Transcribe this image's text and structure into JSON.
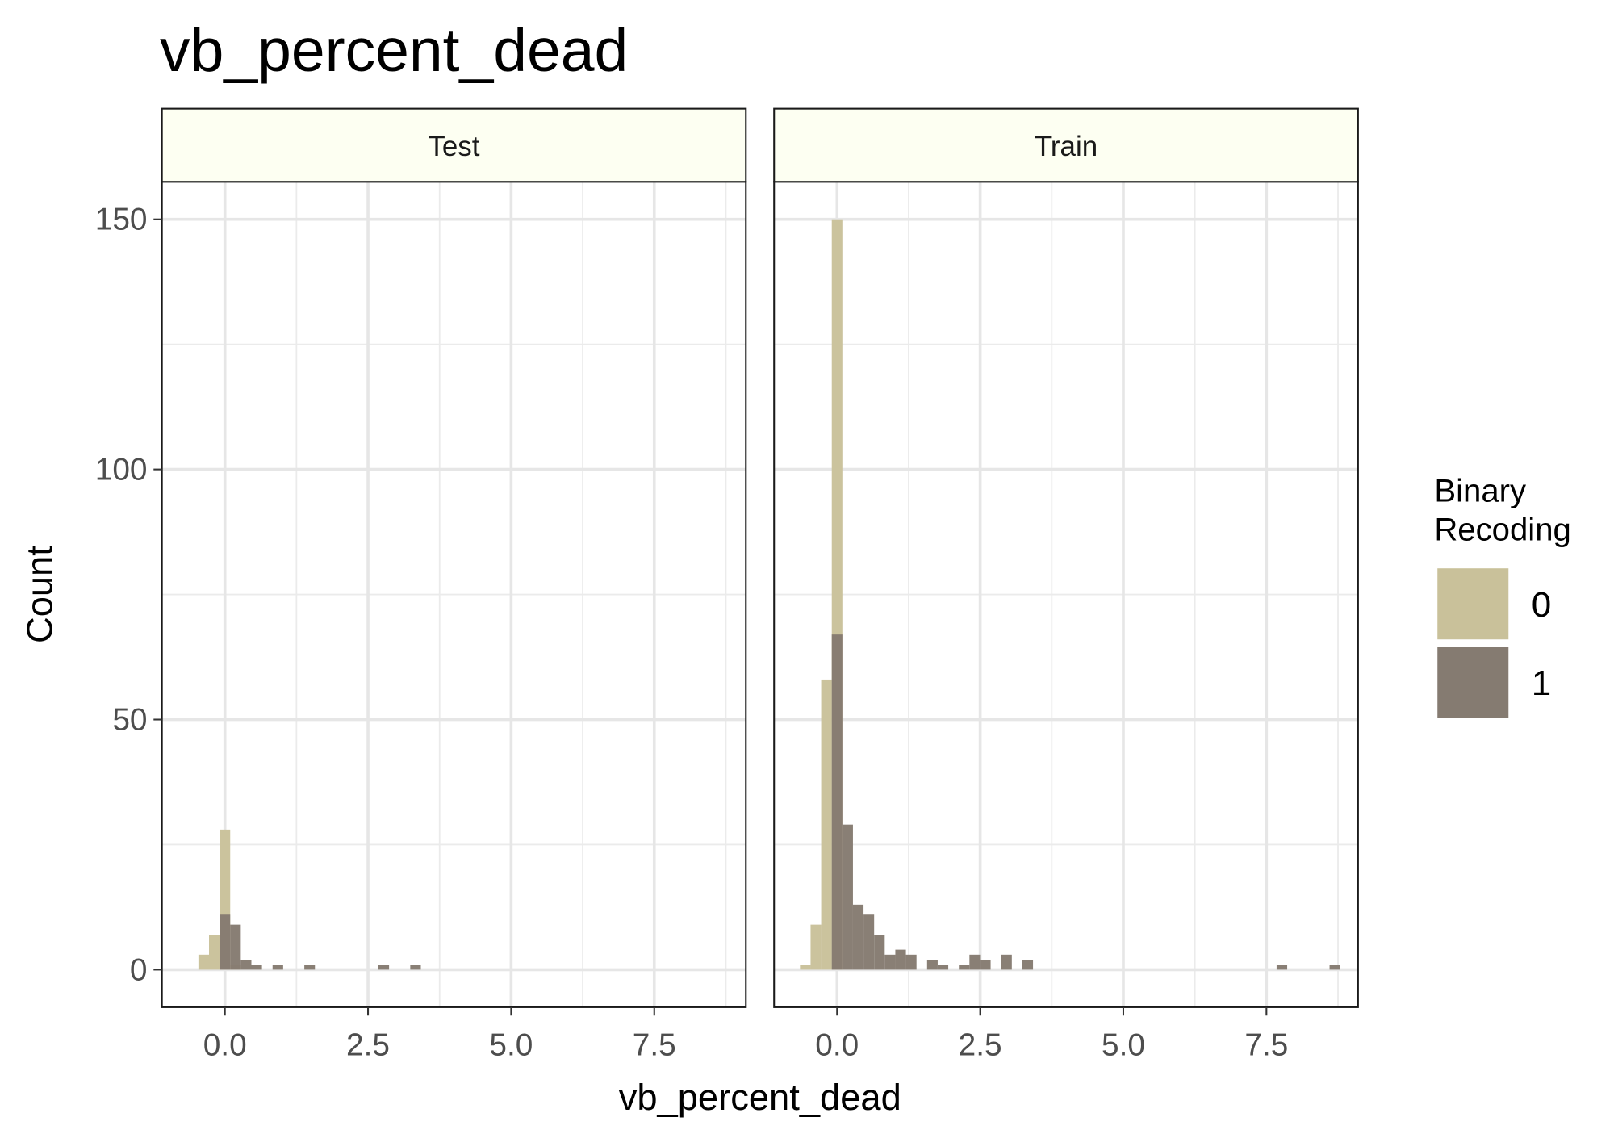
{
  "chart_data": {
    "type": "bar",
    "title": "vb_percent_dead",
    "xlabel": "vb_percent_dead",
    "ylabel": "Count",
    "facets": [
      "Test",
      "Train"
    ],
    "xlim": [
      -1.1,
      9.1
    ],
    "ylim": [
      -7.5,
      157.5
    ],
    "x_ticks": [
      0.0,
      2.5,
      5.0,
      7.5
    ],
    "x_tick_labels": [
      "0.0",
      "2.5",
      "5.0",
      "7.5"
    ],
    "y_ticks": [
      0,
      50,
      100,
      150
    ],
    "y_tick_labels": [
      "0",
      "50",
      "100",
      "150"
    ],
    "grid": true,
    "legend": {
      "title": [
        "Binary",
        "Recoding"
      ],
      "position": "right",
      "items": [
        {
          "label": "0",
          "color": "#c9c19a"
        },
        {
          "label": "1",
          "color": "#857b71"
        }
      ]
    },
    "strip_fill": "#fdfff2",
    "bin_width": 0.185,
    "series": [
      {
        "facet": "Test",
        "name": "0",
        "bins": [
          {
            "x": -0.37,
            "count": 3
          },
          {
            "x": -0.185,
            "count": 7
          },
          {
            "x": 0.0,
            "count": 28
          },
          {
            "x": 0.185,
            "count": 1
          }
        ]
      },
      {
        "facet": "Test",
        "name": "1",
        "bins": [
          {
            "x": 0.0,
            "count": 11
          },
          {
            "x": 0.185,
            "count": 9
          },
          {
            "x": 0.37,
            "count": 2
          },
          {
            "x": 0.555,
            "count": 1
          },
          {
            "x": 0.925,
            "count": 1
          },
          {
            "x": 1.48,
            "count": 1
          },
          {
            "x": 2.775,
            "count": 1
          },
          {
            "x": 3.33,
            "count": 1
          }
        ]
      },
      {
        "facet": "Train",
        "name": "0",
        "bins": [
          {
            "x": -0.555,
            "count": 1
          },
          {
            "x": -0.37,
            "count": 9
          },
          {
            "x": -0.185,
            "count": 58
          },
          {
            "x": 0.0,
            "count": 150
          }
        ]
      },
      {
        "facet": "Train",
        "name": "1",
        "bins": [
          {
            "x": 0.0,
            "count": 67
          },
          {
            "x": 0.185,
            "count": 29
          },
          {
            "x": 0.37,
            "count": 13
          },
          {
            "x": 0.555,
            "count": 11
          },
          {
            "x": 0.74,
            "count": 7
          },
          {
            "x": 0.925,
            "count": 3
          },
          {
            "x": 1.11,
            "count": 4
          },
          {
            "x": 1.295,
            "count": 3
          },
          {
            "x": 1.665,
            "count": 2
          },
          {
            "x": 1.85,
            "count": 1
          },
          {
            "x": 2.22,
            "count": 1
          },
          {
            "x": 2.405,
            "count": 3
          },
          {
            "x": 2.59,
            "count": 2
          },
          {
            "x": 2.96,
            "count": 3
          },
          {
            "x": 3.33,
            "count": 2
          },
          {
            "x": 7.77,
            "count": 1
          },
          {
            "x": 8.695,
            "count": 1
          }
        ]
      }
    ]
  }
}
